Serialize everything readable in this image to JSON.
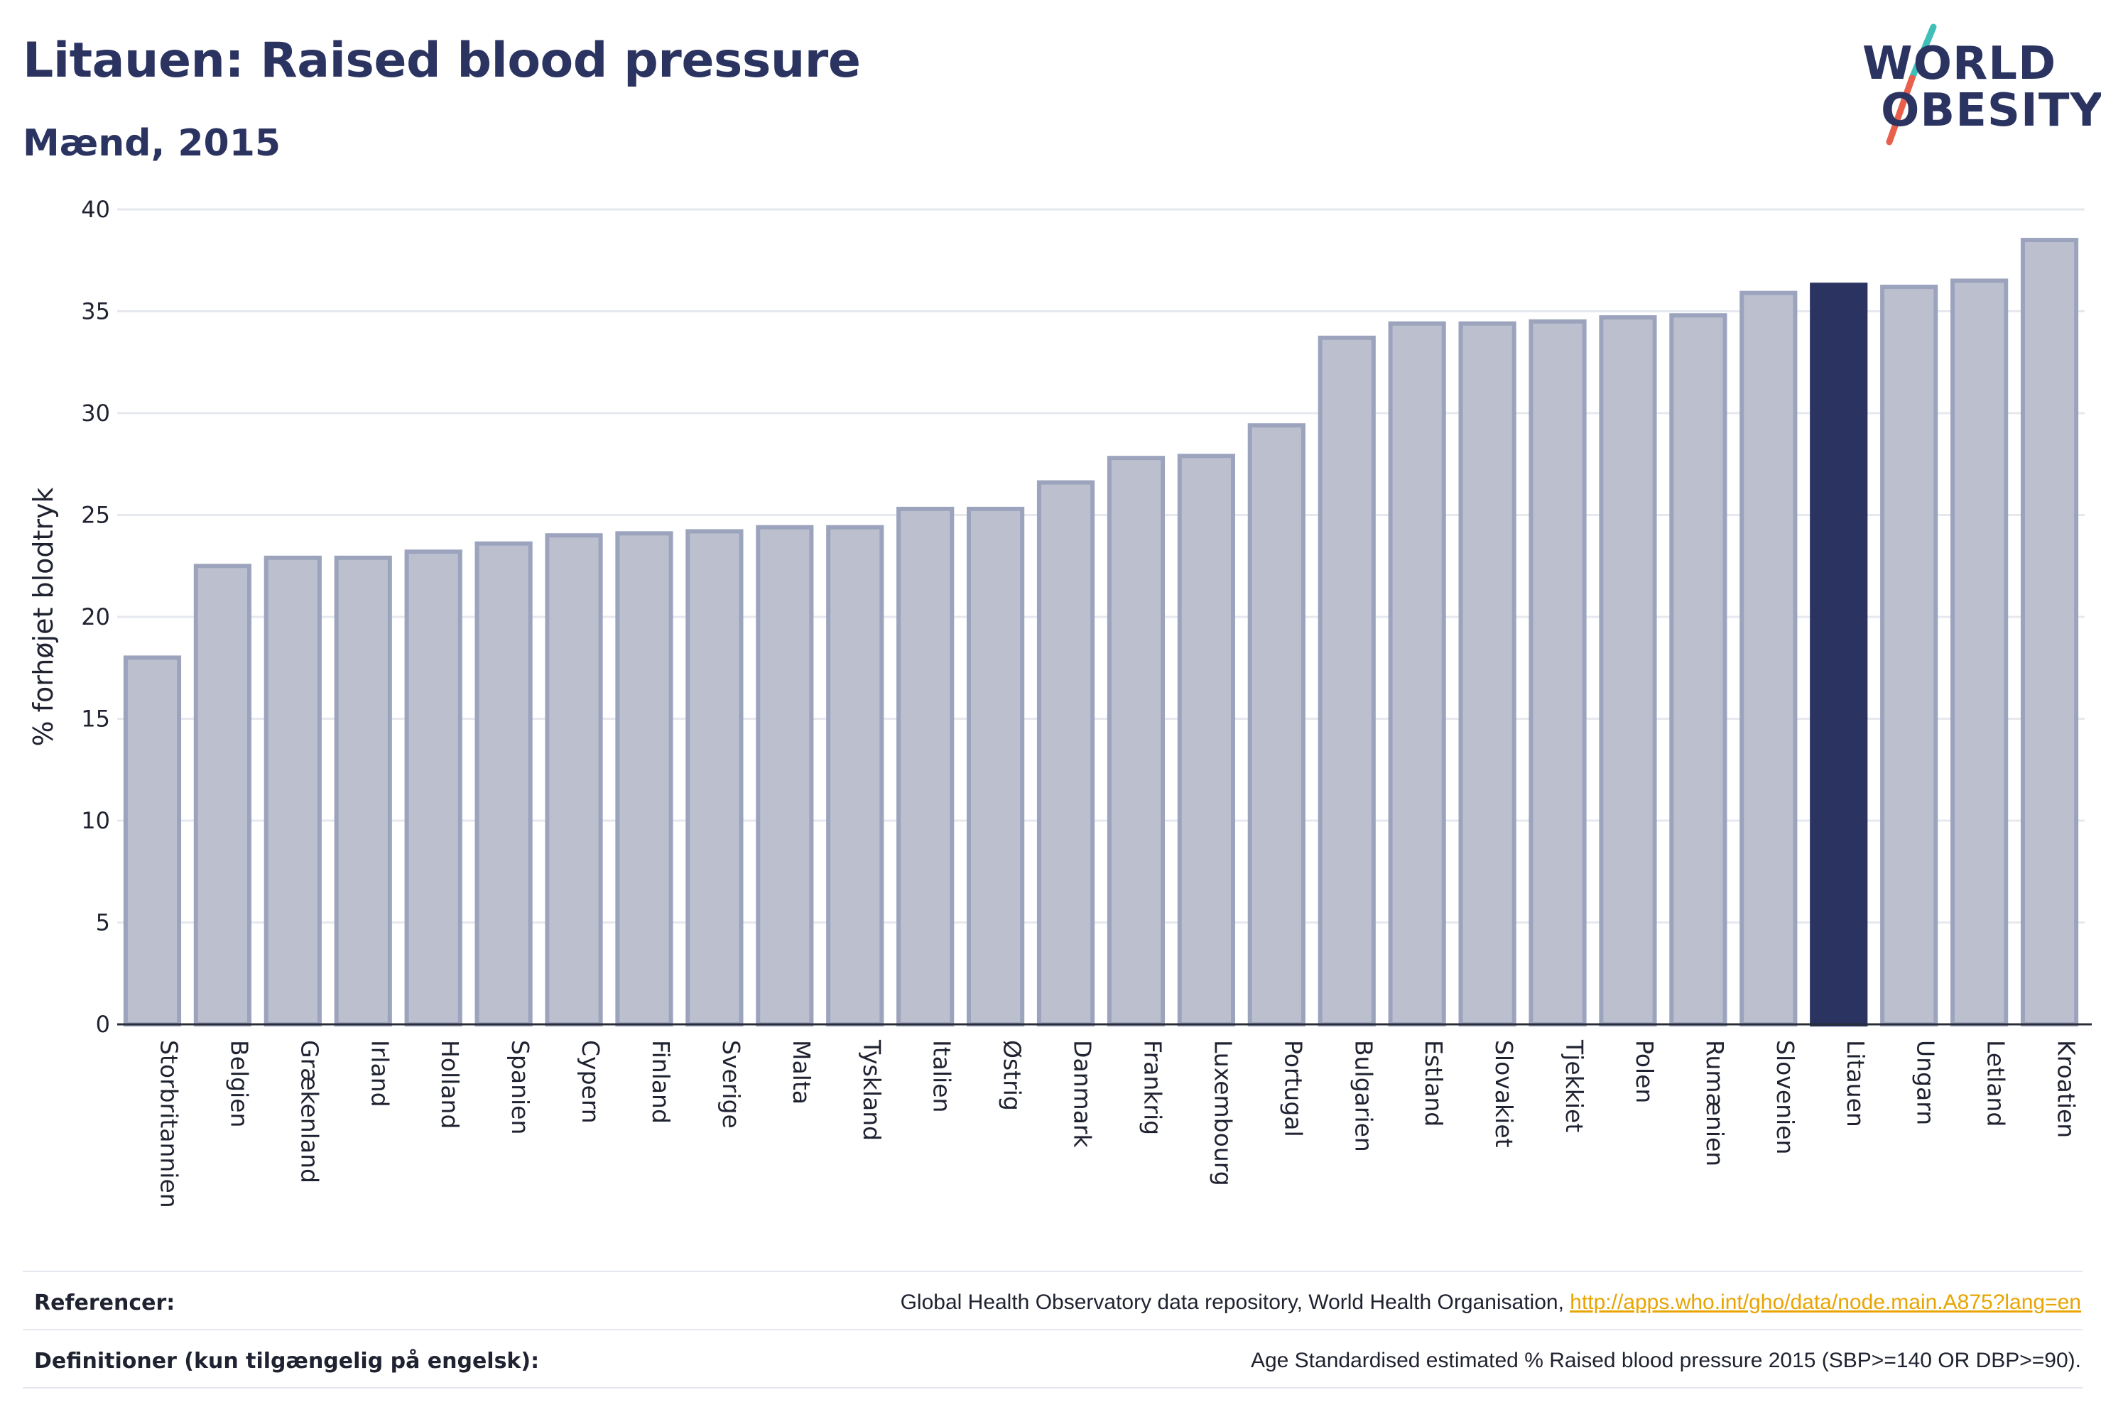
{
  "header": {
    "title": "Litauen: Raised blood pressure",
    "subtitle": "Mænd, 2015"
  },
  "logo": {
    "line1": "WORLD",
    "line2": "OBESITY",
    "text_color": "#2b3461",
    "slash_colors": [
      "#3fbfb8",
      "#e8604c"
    ]
  },
  "colors": {
    "bar_fill": "#bcc0ce",
    "bar_stroke": "#9ca3bd",
    "highlight": "#2b3461",
    "grid": "#e6e8ef"
  },
  "chart_data": {
    "type": "bar",
    "title": "",
    "xlabel": "",
    "ylabel": "% forhøjet blodtryk",
    "ylim": [
      0,
      40
    ],
    "yticks": [
      0,
      5,
      10,
      15,
      20,
      25,
      30,
      35,
      40
    ],
    "grid": true,
    "highlight_category": "Litauen",
    "categories": [
      "Storbritannien",
      "Belgien",
      "Grækenland",
      "Irland",
      "Holland",
      "Spanien",
      "Cypern",
      "Finland",
      "Sverige",
      "Malta",
      "Tyskland",
      "Italien",
      "Østrig",
      "Danmark",
      "Frankrig",
      "Luxembourg",
      "Portugal",
      "Bulgarien",
      "Estland",
      "Slovakiet",
      "Tjekkiet",
      "Polen",
      "Rumænien",
      "Slovenien",
      "Litauen",
      "Ungarn",
      "Letland",
      "Kroatien"
    ],
    "values": [
      18.0,
      22.5,
      22.9,
      22.9,
      23.2,
      23.6,
      24.0,
      24.1,
      24.2,
      24.4,
      24.4,
      25.3,
      25.3,
      26.6,
      27.8,
      27.9,
      29.4,
      33.7,
      34.4,
      34.4,
      34.5,
      34.7,
      34.8,
      35.9,
      36.3,
      36.2,
      36.5,
      38.5
    ]
  },
  "footer": {
    "references_label": "Referencer:",
    "references_text": "Global Health Observatory data repository, World Health Organisation, ",
    "references_link": "http://apps.who.int/gho/data/node.main.A875?lang=en",
    "definitions_label": "Definitioner (kun tilgængelig på engelsk):",
    "definitions_text": "Age Standardised estimated % Raised blood pressure 2015 (SBP>=140 OR DBP>=90)."
  }
}
